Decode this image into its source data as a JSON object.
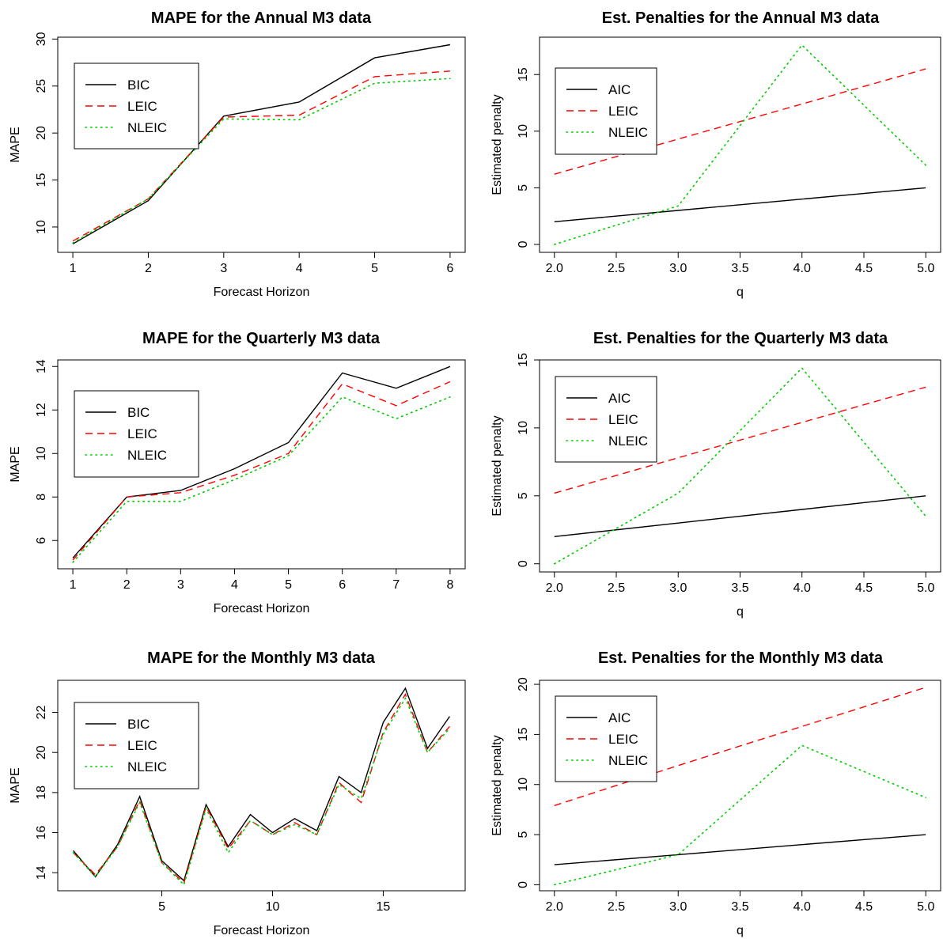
{
  "colors": {
    "black": "#000000",
    "red": "#ff0000",
    "green": "#00cd00"
  },
  "chart_data": [
    {
      "type": "line",
      "title": "MAPE for the Annual M3 data",
      "xlabel": "Forecast Horizon",
      "ylabel": "MAPE",
      "x": [
        1,
        2,
        3,
        4,
        5,
        6
      ],
      "xticks": [
        "1",
        "2",
        "3",
        "4",
        "5",
        "6"
      ],
      "yticks": [
        "10",
        "15",
        "20",
        "25",
        "30"
      ],
      "xlim": [
        0.8,
        6.2
      ],
      "ylim": [
        7.3,
        30.2
      ],
      "legend": "top-left",
      "series": [
        {
          "name": "BIC",
          "style": "solid",
          "color": "#000000",
          "values": [
            8.2,
            12.8,
            21.8,
            23.3,
            28.0,
            29.4
          ]
        },
        {
          "name": "LEIC",
          "style": "dashed",
          "color": "#ff0000",
          "values": [
            8.5,
            13.0,
            21.7,
            21.9,
            26.0,
            26.6
          ]
        },
        {
          "name": "NLEIC",
          "style": "dotted",
          "color": "#00cd00",
          "values": [
            8.3,
            13.0,
            21.5,
            21.4,
            25.3,
            25.8
          ]
        }
      ]
    },
    {
      "type": "line",
      "title": "Est. Penalties for the Annual M3 data",
      "xlabel": "q",
      "ylabel": "Estimated penalty",
      "x": [
        2,
        3,
        4,
        5
      ],
      "xticks": [
        "2.0",
        "2.5",
        "3.0",
        "3.5",
        "4.0",
        "4.5",
        "5.0"
      ],
      "yticks": [
        "0",
        "5",
        "10",
        "15"
      ],
      "xlim": [
        1.88,
        5.12
      ],
      "ylim": [
        -0.7,
        18.3
      ],
      "legend": "top-left",
      "series": [
        {
          "name": "AIC",
          "style": "solid",
          "color": "#000000",
          "values": [
            2.0,
            3.0,
            4.0,
            5.0
          ]
        },
        {
          "name": "LEIC",
          "style": "dashed",
          "color": "#ff0000",
          "values": [
            6.2,
            9.3,
            12.4,
            15.5
          ]
        },
        {
          "name": "NLEIC",
          "style": "dotted",
          "color": "#00cd00",
          "values": [
            0.0,
            3.4,
            17.6,
            7.0
          ]
        }
      ]
    },
    {
      "type": "line",
      "title": "MAPE for the Quarterly M3 data",
      "xlabel": "Forecast Horizon",
      "ylabel": "MAPE",
      "x": [
        1,
        2,
        3,
        4,
        5,
        6,
        7,
        8
      ],
      "xticks": [
        "1",
        "2",
        "3",
        "4",
        "5",
        "6",
        "7",
        "8"
      ],
      "yticks": [
        "6",
        "8",
        "10",
        "12",
        "14"
      ],
      "xlim": [
        0.72,
        8.28
      ],
      "ylim": [
        4.7,
        14.3
      ],
      "legend": "top-left",
      "series": [
        {
          "name": "BIC",
          "style": "solid",
          "color": "#000000",
          "values": [
            5.2,
            8.0,
            8.3,
            9.3,
            10.5,
            13.7,
            13.0,
            14.0
          ]
        },
        {
          "name": "LEIC",
          "style": "dashed",
          "color": "#ff0000",
          "values": [
            5.1,
            8.0,
            8.2,
            9.0,
            10.0,
            13.2,
            12.2,
            13.3
          ]
        },
        {
          "name": "NLEIC",
          "style": "dotted",
          "color": "#00cd00",
          "values": [
            5.0,
            7.8,
            7.8,
            8.8,
            9.9,
            12.6,
            11.6,
            12.6
          ]
        }
      ]
    },
    {
      "type": "line",
      "title": "Est. Penalties for the Quarterly M3 data",
      "xlabel": "q",
      "ylabel": "Estimated penalty",
      "x": [
        2,
        3,
        4,
        5
      ],
      "xticks": [
        "2.0",
        "2.5",
        "3.0",
        "3.5",
        "4.0",
        "4.5",
        "5.0"
      ],
      "yticks": [
        "0",
        "5",
        "10",
        "15"
      ],
      "xlim": [
        1.88,
        5.12
      ],
      "ylim": [
        -0.6,
        15.0
      ],
      "legend": "top-left",
      "series": [
        {
          "name": "AIC",
          "style": "solid",
          "color": "#000000",
          "values": [
            2.0,
            3.0,
            4.0,
            5.0
          ]
        },
        {
          "name": "LEIC",
          "style": "dashed",
          "color": "#ff0000",
          "values": [
            5.2,
            7.8,
            10.4,
            13.0
          ]
        },
        {
          "name": "NLEIC",
          "style": "dotted",
          "color": "#00cd00",
          "values": [
            0.0,
            5.2,
            14.4,
            3.5
          ]
        }
      ]
    },
    {
      "type": "line",
      "title": "MAPE for the Monthly M3 data",
      "xlabel": "Forecast Horizon",
      "ylabel": "MAPE",
      "x": [
        1,
        2,
        3,
        4,
        5,
        6,
        7,
        8,
        9,
        10,
        11,
        12,
        13,
        14,
        15,
        16,
        17,
        18
      ],
      "xticks": [
        "5",
        "10",
        "15"
      ],
      "xtick_values": [
        5,
        10,
        15
      ],
      "yticks": [
        "14",
        "16",
        "18",
        "20",
        "22"
      ],
      "xlim": [
        0.3,
        18.7
      ],
      "ylim": [
        13.1,
        23.6
      ],
      "legend": "top-left",
      "series": [
        {
          "name": "BIC",
          "style": "solid",
          "color": "#000000",
          "values": [
            15.1,
            13.8,
            15.4,
            17.8,
            14.6,
            13.6,
            17.4,
            15.3,
            16.9,
            16.0,
            16.7,
            16.1,
            18.8,
            18.0,
            21.5,
            23.2,
            20.2,
            21.8
          ]
        },
        {
          "name": "LEIC",
          "style": "dashed",
          "color": "#ff0000",
          "values": [
            15.0,
            13.9,
            15.3,
            17.6,
            14.5,
            13.5,
            17.3,
            15.2,
            16.6,
            15.9,
            16.5,
            15.9,
            18.5,
            17.5,
            21.0,
            22.9,
            20.0,
            21.3
          ]
        },
        {
          "name": "NLEIC",
          "style": "dotted",
          "color": "#00cd00",
          "values": [
            15.0,
            13.8,
            15.3,
            17.5,
            14.5,
            13.4,
            17.2,
            15.0,
            16.6,
            15.9,
            16.4,
            15.9,
            18.4,
            17.7,
            20.9,
            22.7,
            20.0,
            21.2
          ]
        }
      ]
    },
    {
      "type": "line",
      "title": "Est. Penalties for the Monthly M3 data",
      "xlabel": "q",
      "ylabel": "Estimated penalty",
      "x": [
        2,
        3,
        4,
        5
      ],
      "xticks": [
        "2.0",
        "2.5",
        "3.0",
        "3.5",
        "4.0",
        "4.5",
        "5.0"
      ],
      "yticks": [
        "0",
        "5",
        "10",
        "15",
        "20"
      ],
      "xlim": [
        1.88,
        5.12
      ],
      "ylim": [
        -0.6,
        20.4
      ],
      "legend": "top-left",
      "series": [
        {
          "name": "AIC",
          "style": "solid",
          "color": "#000000",
          "values": [
            2.0,
            3.0,
            4.0,
            5.0
          ]
        },
        {
          "name": "LEIC",
          "style": "dashed",
          "color": "#ff0000",
          "values": [
            7.9,
            11.9,
            15.8,
            19.7
          ]
        },
        {
          "name": "NLEIC",
          "style": "dotted",
          "color": "#00cd00",
          "values": [
            0.0,
            3.0,
            13.9,
            8.7
          ]
        }
      ]
    }
  ]
}
